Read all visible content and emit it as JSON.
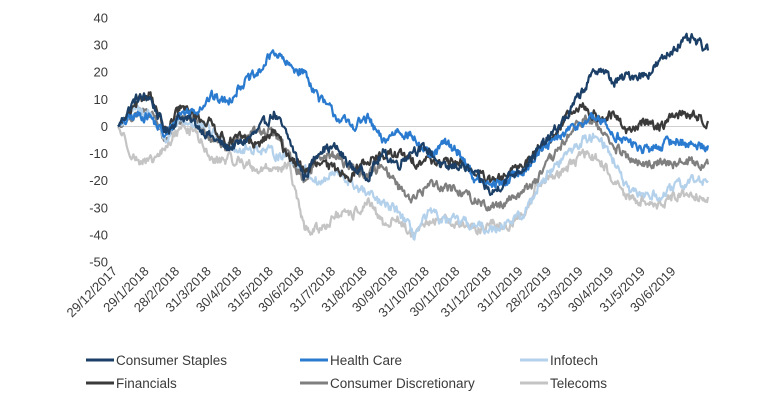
{
  "chart_data": {
    "type": "line",
    "title": "",
    "xlabel": "",
    "ylabel": "",
    "ylim": [
      -50,
      40
    ],
    "yticks": [
      40,
      30,
      20,
      10,
      0,
      -10,
      -20,
      -30,
      -40,
      -50
    ],
    "xlim": [
      "2017-12-29",
      "2019-07-31"
    ],
    "xticks": [
      "29/12/2017",
      "29/1/2018",
      "28/2/2018",
      "31/3/2018",
      "30/4/2018",
      "31/5/2018",
      "30/6/2018",
      "31/7/2018",
      "31/8/2018",
      "30/9/2018",
      "31/10/2018",
      "30/11/2018",
      "31/12/2018",
      "31/1/2019",
      "28/2/2019",
      "31/3/2019",
      "30/4/2019",
      "31/5/2019",
      "30/6/2019"
    ],
    "grid": false,
    "legend_position": "bottom",
    "x": [
      "2017-12-29",
      "2018-01-15",
      "2018-01-29",
      "2018-02-14",
      "2018-02-28",
      "2018-03-15",
      "2018-03-31",
      "2018-04-15",
      "2018-04-30",
      "2018-05-15",
      "2018-05-31",
      "2018-06-15",
      "2018-06-30",
      "2018-07-15",
      "2018-07-31",
      "2018-08-15",
      "2018-08-31",
      "2018-09-15",
      "2018-09-30",
      "2018-10-15",
      "2018-10-31",
      "2018-11-15",
      "2018-11-30",
      "2018-12-15",
      "2018-12-31",
      "2019-01-15",
      "2019-01-31",
      "2019-02-14",
      "2019-02-28",
      "2019-03-15",
      "2019-03-31",
      "2019-04-15",
      "2019-04-30",
      "2019-05-15",
      "2019-05-31",
      "2019-06-15",
      "2019-06-30",
      "2019-07-15",
      "2019-07-31"
    ],
    "series": [
      {
        "name": "Consumer Staples",
        "color": "#1b3f66",
        "values": [
          0,
          10,
          11,
          -2,
          4,
          1,
          -4,
          -8,
          -6,
          -2,
          5,
          -5,
          -19,
          -8,
          -8,
          -15,
          -18,
          -10,
          -14,
          -8,
          -9,
          -16,
          -14,
          -18,
          -25,
          -19,
          -15,
          -9,
          -3,
          4,
          14,
          22,
          16,
          19,
          19,
          24,
          30,
          32,
          28
        ]
      },
      {
        "name": "Health Care",
        "color": "#2a7bd0",
        "values": [
          0,
          4,
          4,
          -4,
          5,
          6,
          11,
          9,
          16,
          19,
          28,
          22,
          20,
          10,
          4,
          0,
          3,
          -6,
          -1,
          -4,
          -12,
          -6,
          -10,
          -20,
          -22,
          -20,
          -16,
          -10,
          -6,
          -2,
          2,
          3,
          -3,
          -6,
          -9,
          -7,
          -5,
          -7,
          -7
        ]
      },
      {
        "name": "Infotech",
        "color": "#b4d1ec",
        "values": [
          0,
          6,
          5,
          -5,
          2,
          1,
          -2,
          -6,
          -9,
          -8,
          -10,
          -11,
          -16,
          -21,
          -17,
          -21,
          -25,
          -29,
          -31,
          -40,
          -32,
          -35,
          -35,
          -37,
          -38,
          -35,
          -33,
          -22,
          -16,
          -10,
          -5,
          -3,
          -13,
          -25,
          -25,
          -26,
          -22,
          -20,
          -20
        ]
      },
      {
        "name": "Financials",
        "color": "#3a3a3a",
        "values": [
          0,
          7,
          13,
          -3,
          7,
          4,
          1,
          -6,
          -4,
          -7,
          -2,
          -11,
          -16,
          -14,
          -16,
          -18,
          -12,
          -11,
          -10,
          -13,
          -12,
          -14,
          -13,
          -17,
          -21,
          -18,
          -14,
          -8,
          -4,
          4,
          7,
          3,
          4,
          -2,
          2,
          0,
          5,
          4,
          2
        ]
      },
      {
        "name": "Consumer Discretionary",
        "color": "#7f7f7f",
        "values": [
          0,
          5,
          5,
          -5,
          3,
          3,
          -6,
          -8,
          -3,
          -2,
          -2,
          -11,
          -20,
          -10,
          -11,
          -15,
          -18,
          -14,
          -22,
          -27,
          -21,
          -22,
          -24,
          -27,
          -30,
          -27,
          -24,
          -19,
          -12,
          -4,
          3,
          0,
          -8,
          -12,
          -15,
          -12,
          -14,
          -13,
          -14
        ]
      },
      {
        "name": "Telecoms",
        "color": "#c4c4c4",
        "values": [
          0,
          -12,
          -14,
          -8,
          0,
          -2,
          -13,
          -12,
          -13,
          -16,
          -15,
          -15,
          -38,
          -38,
          -33,
          -33,
          -28,
          -36,
          -34,
          -41,
          -35,
          -34,
          -36,
          -38,
          -36,
          -37,
          -32,
          -21,
          -18,
          -16,
          -10,
          -12,
          -20,
          -27,
          -27,
          -29,
          -25,
          -25,
          -26
        ]
      }
    ]
  }
}
